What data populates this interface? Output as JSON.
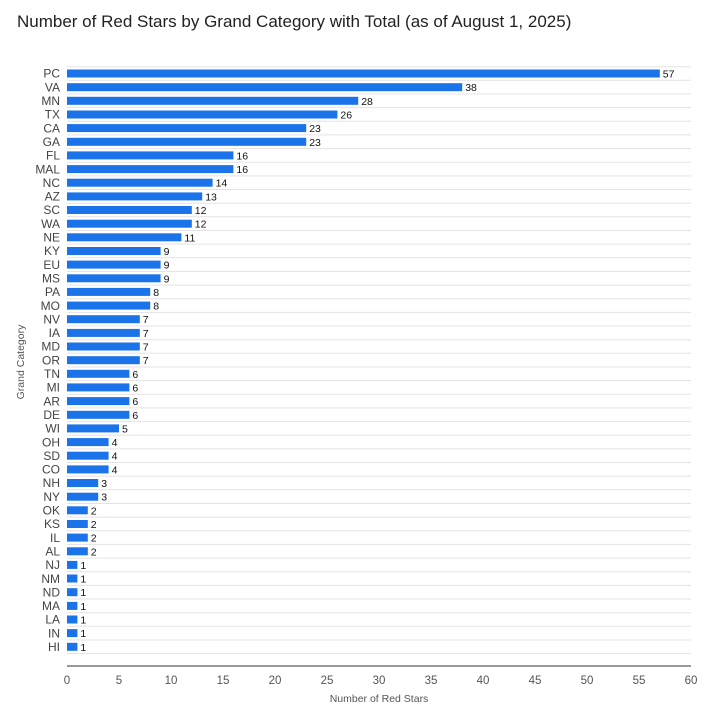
{
  "chart_data": {
    "type": "bar",
    "orientation": "horizontal",
    "title": "Number of Red Stars by Grand Category with Total (as of August 1, 2025)",
    "xlabel": "Number of Red Stars",
    "ylabel": "Grand Category",
    "xlim": [
      0,
      60
    ],
    "xticks": [
      0,
      5,
      10,
      15,
      20,
      25,
      30,
      35,
      40,
      45,
      50,
      55,
      60
    ],
    "grid": true,
    "bar_color": "#1a73e8",
    "categories": [
      "PC",
      "VA",
      "MN",
      "TX",
      "CA",
      "GA",
      "FL",
      "MAL",
      "NC",
      "AZ",
      "SC",
      "WA",
      "NE",
      "KY",
      "EU",
      "MS",
      "PA",
      "MO",
      "NV",
      "IA",
      "MD",
      "OR",
      "TN",
      "MI",
      "AR",
      "DE",
      "WI",
      "OH",
      "SD",
      "CO",
      "NH",
      "NY",
      "OK",
      "KS",
      "IL",
      "AL",
      "NJ",
      "NM",
      "ND",
      "MA",
      "LA",
      "IN",
      "HI"
    ],
    "values": [
      57,
      38,
      28,
      26,
      23,
      23,
      16,
      16,
      14,
      13,
      12,
      12,
      11,
      9,
      9,
      9,
      8,
      8,
      7,
      7,
      7,
      7,
      6,
      6,
      6,
      6,
      5,
      4,
      4,
      4,
      3,
      3,
      2,
      2,
      2,
      2,
      1,
      1,
      1,
      1,
      1,
      1,
      1
    ]
  }
}
